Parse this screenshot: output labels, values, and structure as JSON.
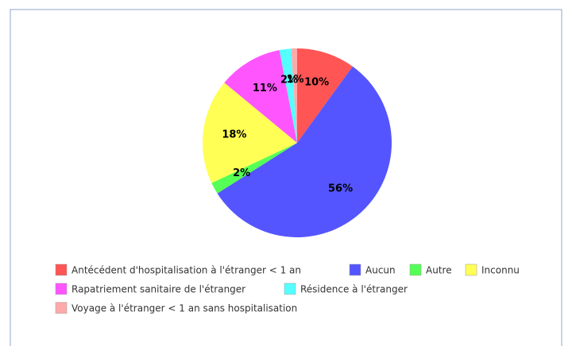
{
  "chart_data": {
    "type": "pie",
    "categories": [
      "Antécédent d'hospitalisation à l'étranger < 1 an",
      "Aucun",
      "Autre",
      "Inconnu",
      "Rapatriement sanitaire de l'étranger",
      "Résidence à l'étranger",
      "Voyage à l'étranger < 1 an sans hospitalisation"
    ],
    "values": [
      10,
      56,
      2,
      18,
      11,
      2,
      1
    ],
    "value_labels": [
      "10%",
      "56%",
      "2%",
      "18%",
      "11%",
      "2%",
      "1%"
    ],
    "colors": [
      "#ff5555",
      "#5555ff",
      "#55ff55",
      "#ffff55",
      "#ff55ff",
      "#55ffff",
      "#ffaaaa"
    ]
  }
}
